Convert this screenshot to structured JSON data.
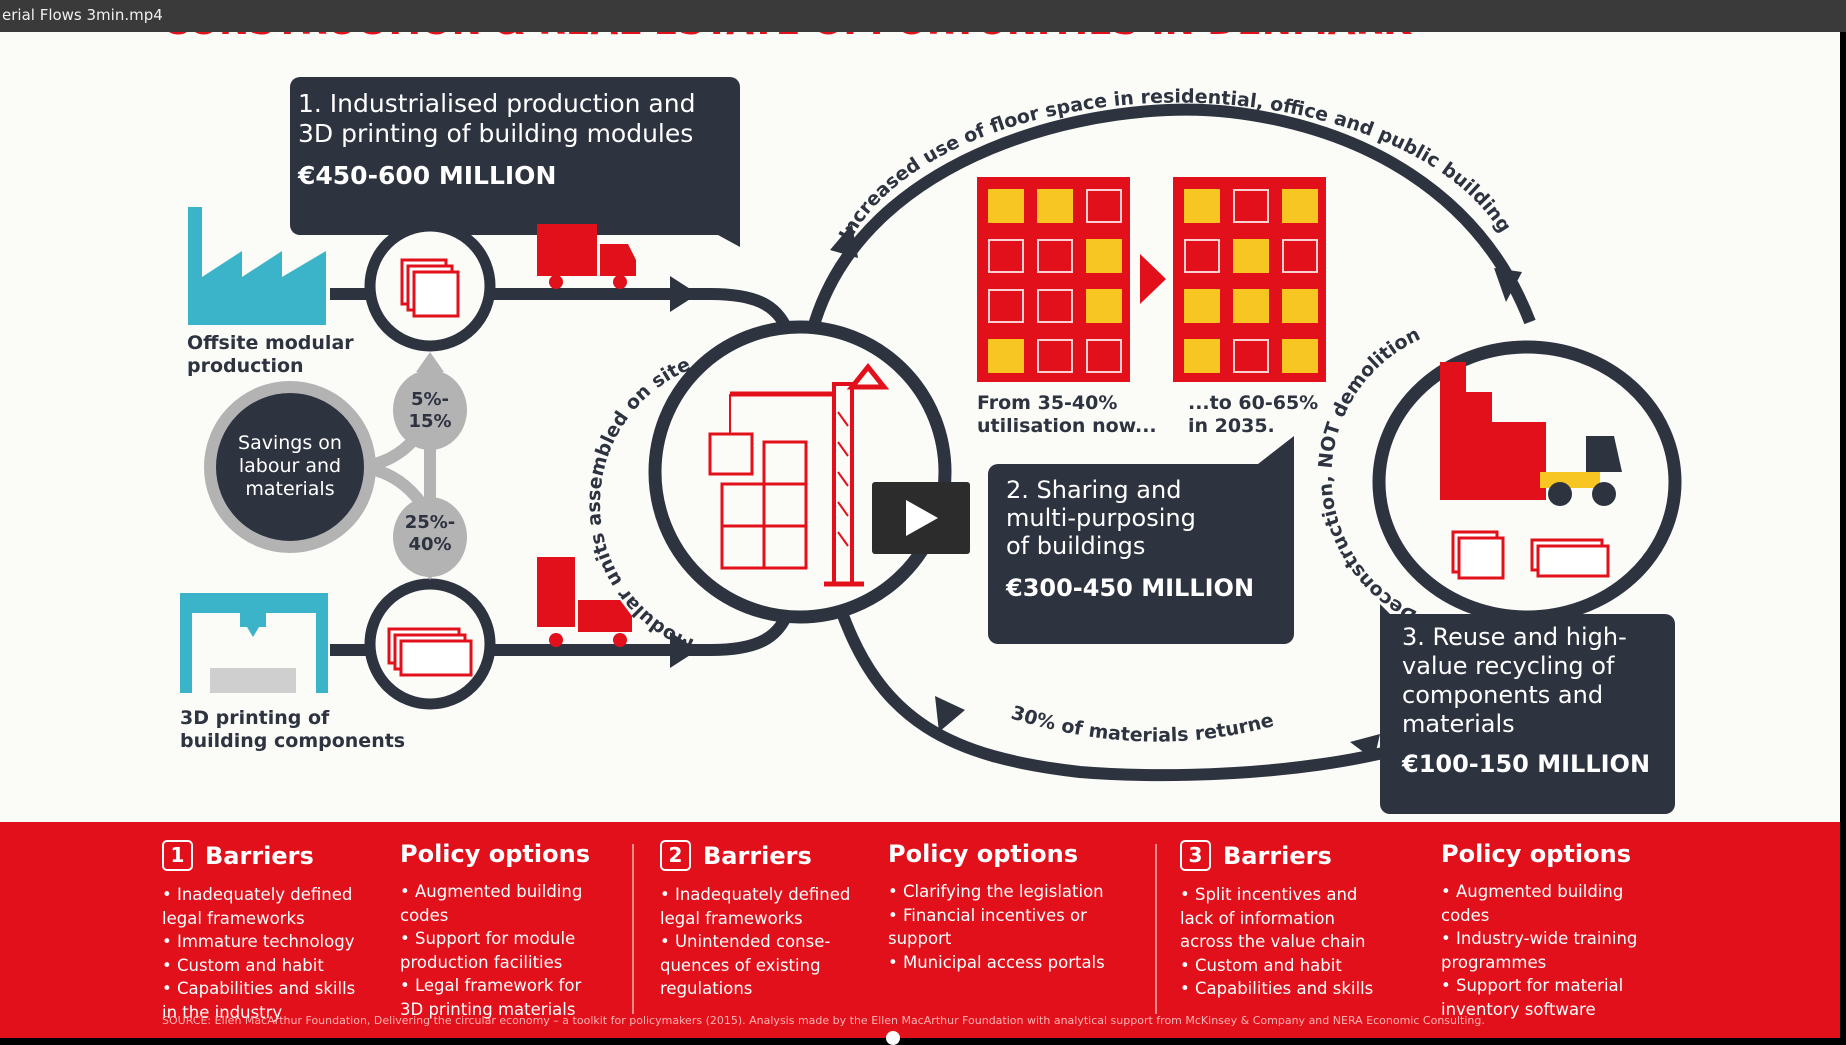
{
  "window": {
    "title": "erial Flows 3min.mp4"
  },
  "infographic": {
    "heading": "CONSTRUCTION & REAL ESTATE OPPORTUNITIES IN DENMARK",
    "box1": {
      "line1": "1. Industrialised production and",
      "line2": "3D printing of building modules",
      "value": "€450-600 MILLION"
    },
    "box2": {
      "line1": "2. Sharing and",
      "line2": "multi-purposing",
      "line3": "of buildings",
      "value": "€300-450 MILLION"
    },
    "box3": {
      "line1": "3. Reuse and high-",
      "line2": "value recycling of",
      "line3": "components and",
      "line4": "materials",
      "value": "€100-150 MILLION"
    },
    "offsite_label": [
      "Offsite modular",
      "production"
    ],
    "printing_label": [
      "3D printing of",
      "building components"
    ],
    "savings_label": [
      "Savings on",
      "labour and",
      "materials"
    ],
    "savings_top": [
      "5%-",
      "15%"
    ],
    "savings_bottom": [
      "25%-",
      "40%"
    ],
    "arc_top": "Increased use of floor space in residential, office and public buildings",
    "arc_left": "Modular units assembled on site",
    "arc_right": "Deconstruction, NOT demolition",
    "arc_bottom": "30% of materials returned",
    "util_now": [
      "From 35-40%",
      "utilisation now..."
    ],
    "util_2035": [
      "...to 60-65%",
      "in 2035."
    ]
  },
  "footer": {
    "col1": {
      "num": "1",
      "title": "Barriers",
      "items": [
        "• Inadequately defined",
        "legal frameworks",
        "• Immature technology",
        "• Custom and habit",
        "• Capabilities and skills",
        "in the industry"
      ]
    },
    "col2": {
      "title": "Policy options",
      "items": [
        "• Augmented building",
        "codes",
        "• Support for module",
        "production facilities",
        "• Legal framework for",
        "3D printing materials"
      ]
    },
    "col3": {
      "num": "2",
      "title": "Barriers",
      "items": [
        "• Inadequately defined",
        "legal frameworks",
        "• Unintended conse-",
        "quences of existing",
        "regulations"
      ]
    },
    "col4": {
      "title": "Policy options",
      "items": [
        "• Clarifying the legislation",
        "• Financial incentives or",
        "support",
        "• Municipal access portals"
      ]
    },
    "col5": {
      "num": "3",
      "title": "Barriers",
      "items": [
        "• Split incentives and",
        "lack of information",
        "across the value chain",
        "• Custom and habit",
        "• Capabilities and skills"
      ]
    },
    "col6": {
      "title": "Policy options",
      "items": [
        "• Augmented building",
        "codes",
        "• Industry-wide training",
        "programmes",
        "• Support for material",
        "inventory software"
      ]
    },
    "source": "SOURCE: Ellen MacArthur Foundation, Delivering the circular economy – a toolkit for policymakers (2015). Analysis made by the Ellen MacArthur Foundation with analytical support from McKinsey & Company and NERA Economic Consulting."
  },
  "colors": {
    "red": "#e1101b",
    "navy": "#2e3340",
    "teal": "#3bb3c8",
    "yellow": "#f7c623",
    "grey": "#b3b3b3"
  },
  "player": {
    "play_icon": "play-icon"
  }
}
